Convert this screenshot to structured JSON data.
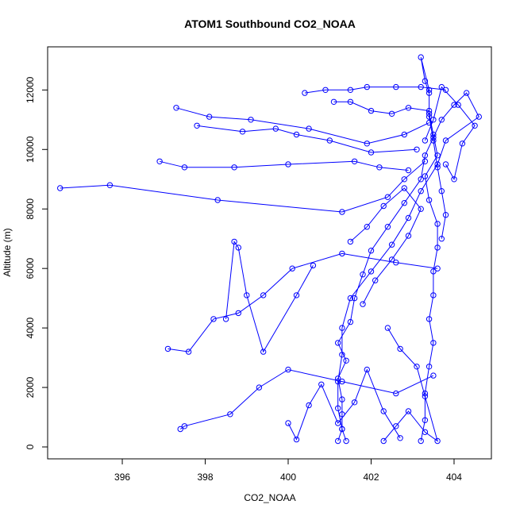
{
  "chart_data": {
    "type": "line",
    "title": "ATOM1 Southbound CO2_NOAA",
    "xlabel": "CO2_NOAA",
    "ylabel": "Altitude (m)",
    "xlim": [
      394.2,
      404.9
    ],
    "ylim": [
      -400,
      13450
    ],
    "xticks": [
      396,
      398,
      400,
      402,
      404
    ],
    "yticks": [
      0,
      2000,
      4000,
      6000,
      8000,
      10000,
      12000
    ],
    "grid": false,
    "legend": "none",
    "colors": {
      "series": "#0000ff",
      "axis": "#000000"
    },
    "markers": "open-circle",
    "series": [
      {
        "x": [
          401.2,
          401.3,
          401.3,
          401.3,
          401.2,
          401.4,
          401.2,
          401.5,
          401.6,
          401.8,
          402.0,
          402.4,
          402.8,
          403.2,
          403.3,
          403.5,
          403.7,
          404.0,
          404.3,
          404.6,
          403.8,
          403.6,
          403.2,
          402.9,
          402.5,
          402.0,
          401.5,
          401.3,
          401.3,
          401.2,
          401.2,
          401.3,
          401.4
        ],
        "y": [
          200,
          600,
          1100,
          1600,
          2300,
          2900,
          3500,
          4200,
          5000,
          5800,
          6600,
          7400,
          8200,
          9000,
          9800,
          10400,
          11000,
          11500,
          11900,
          11100,
          10300,
          9500,
          8600,
          7700,
          6800,
          5900,
          5000,
          4000,
          3100,
          2200,
          1300,
          600,
          200
        ]
      },
      {
        "x": [
          403.2,
          403.3,
          403.3,
          403.4,
          403.5,
          403.4,
          403.5,
          403.5,
          403.6,
          403.6,
          403.4,
          403.3,
          403.6,
          403.5,
          403.4,
          403.4,
          403.3,
          403.2,
          403.4,
          403.4,
          403.5,
          403.6,
          403.7,
          403.8,
          403.7
        ],
        "y": [
          200,
          900,
          1800,
          2700,
          3500,
          4300,
          5100,
          5900,
          6700,
          7500,
          8300,
          9100,
          9800,
          10500,
          11200,
          11900,
          12300,
          13100,
          12000,
          11100,
          10300,
          9400,
          8600,
          7800,
          7000
        ]
      },
      {
        "x": [
          394.5,
          395.7,
          398.3,
          401.3,
          402.4,
          402.8,
          403.3
        ],
        "y": [
          8700,
          8800,
          8300,
          7900,
          8400,
          9000,
          9600
        ]
      },
      {
        "x": [
          396.9,
          397.5,
          398.7,
          400.0,
          401.6,
          402.2,
          402.9
        ],
        "y": [
          9600,
          9400,
          9400,
          9500,
          9600,
          9400,
          9300
        ]
      },
      {
        "x": [
          397.3,
          398.1,
          399.1,
          400.5,
          401.9,
          402.8,
          403.4
        ],
        "y": [
          11400,
          11100,
          11000,
          10700,
          10200,
          10500,
          10900
        ]
      },
      {
        "x": [
          397.8,
          398.9,
          399.7,
          400.2,
          401.0,
          402.0,
          403.1
        ],
        "y": [
          10800,
          10600,
          10700,
          10500,
          10300,
          9900,
          10000
        ]
      },
      {
        "x": [
          397.1,
          397.6,
          398.2,
          398.8,
          399.4,
          400.1,
          401.3,
          402.6,
          403.6
        ],
        "y": [
          3300,
          3200,
          4300,
          4500,
          5100,
          6000,
          6500,
          6200,
          6000
        ]
      },
      {
        "x": [
          397.4,
          397.5,
          398.6,
          399.3,
          400.0,
          401.3,
          402.6,
          403.5
        ],
        "y": [
          600,
          700,
          1100,
          2000,
          2600,
          2200,
          1800,
          2400
        ]
      },
      {
        "x": [
          398.5,
          398.7,
          398.8,
          399.0,
          399.4,
          400.2,
          400.6
        ],
        "y": [
          4300,
          6900,
          6700,
          5100,
          3200,
          5100,
          6100
        ]
      },
      {
        "x": [
          400.4,
          400.9,
          401.5,
          401.9,
          402.6,
          403.2,
          403.8
        ],
        "y": [
          11900,
          12000,
          12000,
          12100,
          12100,
          12100,
          12000
        ]
      },
      {
        "x": [
          401.1,
          401.5,
          402.0,
          402.5,
          402.9,
          403.4
        ],
        "y": [
          11600,
          11600,
          11300,
          11200,
          11400,
          11300
        ]
      },
      {
        "x": [
          400.0,
          400.2,
          400.5,
          400.8,
          401.2,
          401.6,
          401.9,
          402.3,
          402.7
        ],
        "y": [
          800,
          250,
          1400,
          2100,
          800,
          1500,
          2600,
          1200,
          300
        ]
      },
      {
        "x": [
          402.3,
          402.6,
          402.9,
          403.3,
          403.6,
          403.3,
          403.1,
          402.7,
          402.4
        ],
        "y": [
          200,
          700,
          1200,
          500,
          200,
          1700,
          2700,
          3300,
          4000
        ]
      },
      {
        "x": [
          401.8,
          402.1,
          402.5,
          402.9,
          403.2,
          402.8,
          402.3,
          401.9,
          401.5
        ],
        "y": [
          4800,
          5600,
          6300,
          7100,
          8000,
          8700,
          8100,
          7400,
          6900
        ]
      },
      {
        "x": [
          403.8,
          404.0,
          404.2,
          404.5,
          404.1,
          403.7,
          403.5,
          403.3
        ],
        "y": [
          9500,
          9000,
          10200,
          10800,
          11500,
          12100,
          11000,
          10300
        ]
      }
    ]
  }
}
